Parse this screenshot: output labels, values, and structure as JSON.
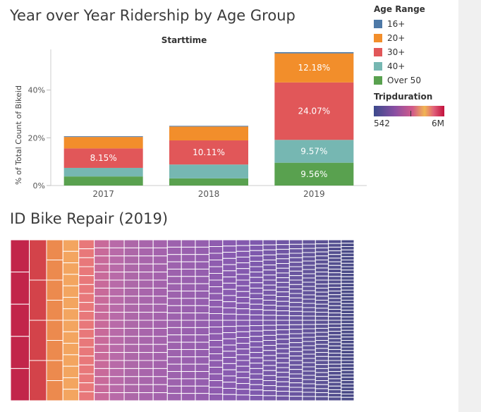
{
  "dashboard": {
    "title_ridership": "Year over Year Ridership by Age Group",
    "title_repair": "ID Bike Repair (2019)"
  },
  "legend": {
    "title": "Age Range",
    "items": [
      {
        "label": "16+",
        "color": "#4e79a7"
      },
      {
        "label": "20+",
        "color": "#f28e2b"
      },
      {
        "label": "30+",
        "color": "#e15759"
      },
      {
        "label": "40+",
        "color": "#76b7b2"
      },
      {
        "label": "Over 50",
        "color": "#59a14f"
      }
    ]
  },
  "gradient_legend": {
    "title": "Tripduration",
    "min_label": "542",
    "max_label": "6M"
  },
  "chart_data": [
    {
      "type": "bar",
      "stacked": true,
      "title": "Starttime",
      "xlabel": "",
      "ylabel": "% of Total Count of Bikeid",
      "categories": [
        "2017",
        "2018",
        "2019"
      ],
      "ylim": [
        0,
        60
      ],
      "yticks": [
        0,
        20,
        40
      ],
      "ytick_labels": [
        "0%",
        "20%",
        "40%"
      ],
      "grid": false,
      "legend_position": "right",
      "series": [
        {
          "name": "Over 50",
          "color": "#59a14f",
          "values": [
            3.8,
            3.0,
            9.56
          ],
          "labels": [
            "",
            "",
            "9.56%"
          ]
        },
        {
          "name": "40+",
          "color": "#76b7b2",
          "values": [
            3.6,
            5.8,
            9.57
          ],
          "labels": [
            "",
            "",
            "9.57%"
          ]
        },
        {
          "name": "30+",
          "color": "#e15759",
          "values": [
            8.15,
            10.11,
            24.07
          ],
          "labels": [
            "8.15%",
            "10.11%",
            "24.07%"
          ]
        },
        {
          "name": "20+",
          "color": "#f28e2b",
          "values": [
            4.8,
            5.8,
            12.18
          ],
          "labels": [
            "",
            "",
            "12.18%"
          ]
        },
        {
          "name": "16+",
          "color": "#4e79a7",
          "values": [
            0.3,
            0.3,
            0.5
          ],
          "labels": [
            "",
            "",
            ""
          ]
        }
      ]
    },
    {
      "type": "heatmap",
      "subtype": "treemap",
      "title": "ID Bike Repair (2019)",
      "color_measure": "Tripduration",
      "color_range": [
        "542",
        "6M"
      ],
      "columns": [
        {
          "cells": 5,
          "color": "#c2254a"
        },
        {
          "cells": 4,
          "color": "#d3434a"
        },
        {
          "cells": 8,
          "color": "#ec8a4e"
        },
        {
          "cells": 14,
          "color": "#f3a560"
        },
        {
          "cells": 18,
          "color": "#e8787a"
        },
        {
          "cells": 20,
          "color": "#c86a9a"
        },
        {
          "cells": 20,
          "color": "#b86aa8"
        },
        {
          "cells": 20,
          "color": "#ad67a8"
        },
        {
          "cells": 20,
          "color": "#a865ab"
        },
        {
          "cells": 20,
          "color": "#a462ac"
        },
        {
          "cells": 22,
          "color": "#9d62ad"
        },
        {
          "cells": 22,
          "color": "#995fae"
        },
        {
          "cells": 22,
          "color": "#955eae"
        },
        {
          "cells": 24,
          "color": "#8f5caf"
        },
        {
          "cells": 26,
          "color": "#895bb0"
        },
        {
          "cells": 28,
          "color": "#8459ae"
        },
        {
          "cells": 30,
          "color": "#7e59ad"
        },
        {
          "cells": 32,
          "color": "#7758a8"
        },
        {
          "cells": 34,
          "color": "#7056a4"
        },
        {
          "cells": 36,
          "color": "#6a56a0"
        },
        {
          "cells": 38,
          "color": "#63549b"
        },
        {
          "cells": 40,
          "color": "#5c5295"
        },
        {
          "cells": 44,
          "color": "#544f8f"
        },
        {
          "cells": 48,
          "color": "#4a4b88"
        }
      ]
    }
  ]
}
